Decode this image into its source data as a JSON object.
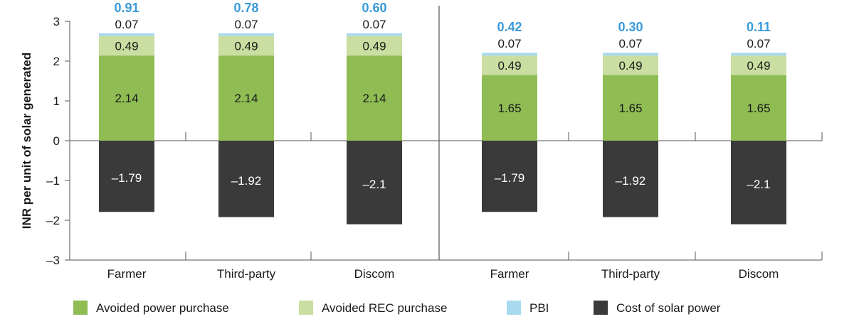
{
  "chart_data": {
    "type": "bar",
    "stacked": true,
    "ylabel": "INR per unit of solar generated",
    "ylim": [
      -3,
      3
    ],
    "yticks": [
      3,
      2,
      1,
      0,
      -1,
      -2,
      -3
    ],
    "ytick_labels": [
      "3",
      "2",
      "1",
      "0",
      "–1",
      "–2",
      "–3"
    ],
    "grid": false,
    "legend_position": "bottom",
    "panels": [
      {
        "categories": [
          "Farmer",
          "Third-party",
          "Discom"
        ],
        "net_labels": [
          "0.91",
          "0.78",
          "0.60"
        ],
        "series": [
          {
            "name": "Avoided power purchase",
            "values": [
              2.14,
              2.14,
              2.14
            ],
            "labels": [
              "2.14",
              "2.14",
              "2.14"
            ]
          },
          {
            "name": "Avoided REC purchase",
            "values": [
              0.49,
              0.49,
              0.49
            ],
            "labels": [
              "0.49",
              "0.49",
              "0.49"
            ]
          },
          {
            "name": "PBI",
            "values": [
              0.07,
              0.07,
              0.07
            ],
            "labels": [
              "0.07",
              "0.07",
              "0.07"
            ]
          },
          {
            "name": "Cost of solar power",
            "values": [
              -1.79,
              -1.92,
              -2.1
            ],
            "labels": [
              "–1.79",
              "–1.92",
              "–2.1"
            ]
          }
        ]
      },
      {
        "categories": [
          "Farmer",
          "Third-party",
          "Discom"
        ],
        "net_labels": [
          "0.42",
          "0.30",
          "0.11"
        ],
        "series": [
          {
            "name": "Avoided power purchase",
            "values": [
              1.65,
              1.65,
              1.65
            ],
            "labels": [
              "1.65",
              "1.65",
              "1.65"
            ]
          },
          {
            "name": "Avoided REC purchase",
            "values": [
              0.49,
              0.49,
              0.49
            ],
            "labels": [
              "0.49",
              "0.49",
              "0.49"
            ]
          },
          {
            "name": "PBI",
            "values": [
              0.07,
              0.07,
              0.07
            ],
            "labels": [
              "0.07",
              "0.07",
              "0.07"
            ]
          },
          {
            "name": "Cost of solar power",
            "values": [
              -1.79,
              -1.92,
              -2.1
            ],
            "labels": [
              "–1.79",
              "–1.92",
              "–2.1"
            ]
          }
        ]
      }
    ],
    "legend": [
      {
        "name": "Avoided power purchase",
        "color": "#8fbc53"
      },
      {
        "name": "Avoided REC purchase",
        "color": "#c9dea0"
      },
      {
        "name": "PBI",
        "color": "#a9d9ee"
      },
      {
        "name": "Cost of solar power",
        "color": "#3a3a3a"
      }
    ],
    "colors": {
      "avoided_power": "#8fbc53",
      "avoided_rec": "#c9dea0",
      "pbi": "#a9d9ee",
      "cost": "#3a3a3a",
      "net_label": "#3a9ad9",
      "axis": "#555555"
    }
  }
}
